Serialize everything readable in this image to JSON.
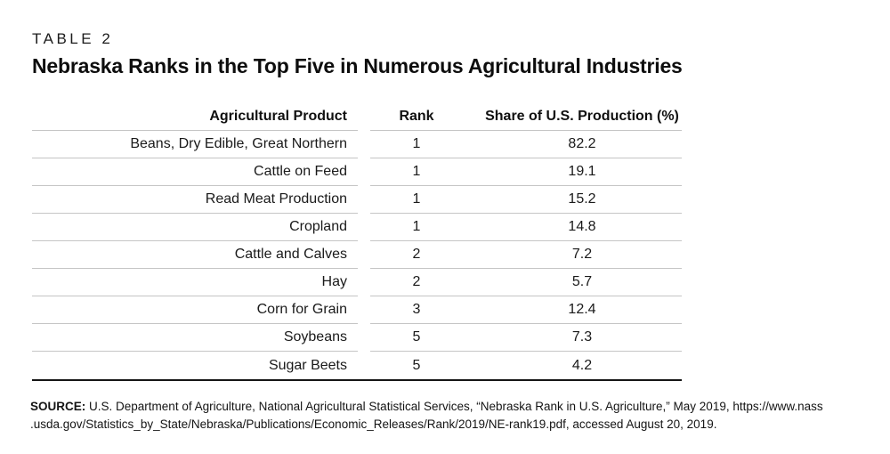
{
  "table_label": "TABLE 2",
  "title": "Nebraska Ranks in the Top Five in Numerous Agricultural Industries",
  "columns": [
    "Agricultural Product",
    "Rank",
    "Share of U.S. Production (%)"
  ],
  "rows": [
    {
      "product": "Beans, Dry Edible, Great Northern",
      "rank": "1",
      "share": "82.2"
    },
    {
      "product": "Cattle on Feed",
      "rank": "1",
      "share": "19.1"
    },
    {
      "product": "Read Meat Production",
      "rank": "1",
      "share": "15.2"
    },
    {
      "product": "Cropland",
      "rank": "1",
      "share": "14.8"
    },
    {
      "product": "Cattle and Calves",
      "rank": "2",
      "share": "7.2"
    },
    {
      "product": "Hay",
      "rank": "2",
      "share": "5.7"
    },
    {
      "product": "Corn for Grain",
      "rank": "3",
      "share": "12.4"
    },
    {
      "product": "Soybeans",
      "rank": "5",
      "share": "7.3"
    },
    {
      "product": "Sugar Beets",
      "rank": "5",
      "share": "4.2"
    }
  ],
  "source": {
    "label": "SOURCE:",
    "line1": "U.S. Department of Agriculture, National Agricultural Statistical Services, “Nebraska Rank in U.S. Agriculture,” May 2019, https://www.nass",
    "line2": ".usda.gov/Statistics_by_State/Nebraska/Publications/Economic_Releases/Rank/2019/NE-rank19.pdf, accessed August 20, 2019."
  },
  "colors": {
    "text": "#111111",
    "row_rule": "#c5c5c5",
    "bottom_rule": "#151515",
    "background": "#ffffff"
  }
}
